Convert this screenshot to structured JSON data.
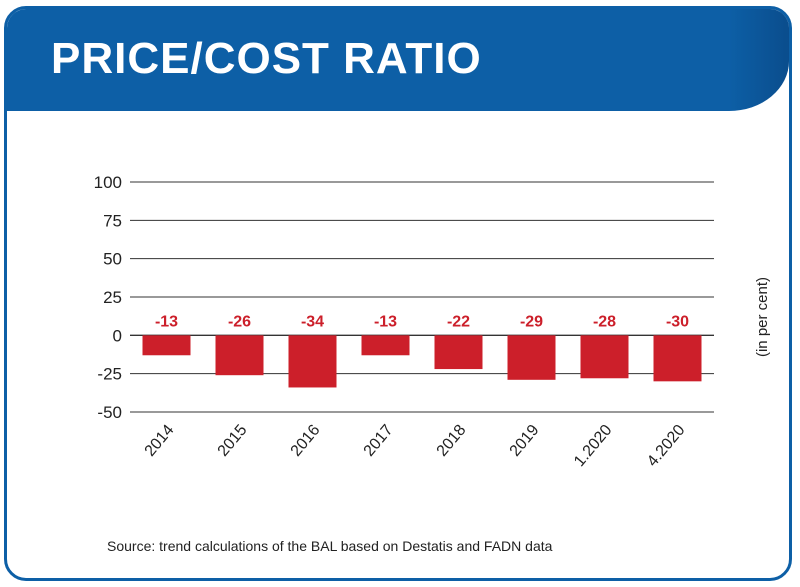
{
  "title": "PRICE/COST RATIO",
  "source": "Source: trend calculations of the BAL based on Destatis and FADN data",
  "colors": {
    "header": "#0d5fa6",
    "bar": "#cc1f2a",
    "label": "#cc1f2a",
    "grid": "#333333",
    "text": "#222222"
  },
  "chart_data": {
    "type": "bar",
    "categories": [
      "2014",
      "2015",
      "2016",
      "2017",
      "2018",
      "2019",
      "1.2020",
      "4.2020"
    ],
    "values": [
      -13,
      -26,
      -34,
      -13,
      -22,
      -29,
      -28,
      -30
    ],
    "data_labels": [
      "-13",
      "-26",
      "-34",
      "-13",
      "-22",
      "-29",
      "-28",
      "-30"
    ],
    "y_ticks": [
      100,
      75,
      50,
      25,
      0,
      -25,
      -50
    ],
    "y_tick_labels": [
      "100",
      "75",
      "50",
      "25",
      "0",
      "-25",
      "-50"
    ],
    "ylim": [
      -50,
      100
    ],
    "ylabel": "(in per cent)",
    "xlabel": "",
    "grid": true
  }
}
